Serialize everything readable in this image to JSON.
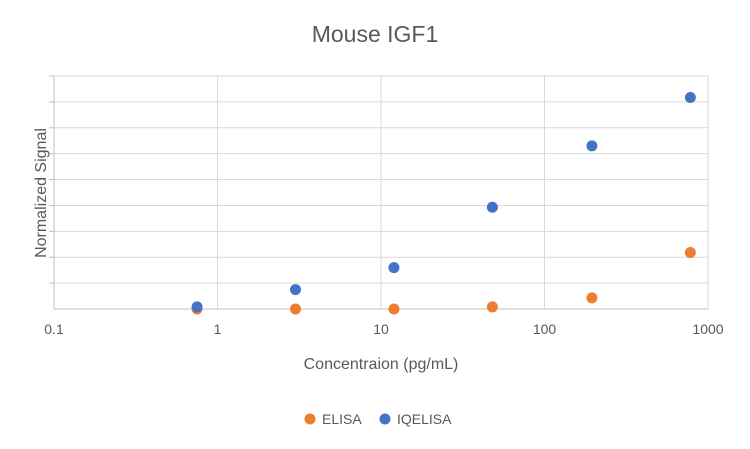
{
  "chart_data": {
    "type": "scatter",
    "title": "Mouse IGF1",
    "xlabel": "Concentraion (pg/mL)",
    "ylabel": "Normalized Signal",
    "x_scale": "log",
    "xlim": [
      0.1,
      1000
    ],
    "ylim": [
      0,
      9
    ],
    "x_ticks": [
      {
        "value": 0.1,
        "label": "0.1"
      },
      {
        "value": 1,
        "label": "1"
      },
      {
        "value": 10,
        "label": "10"
      },
      {
        "value": 100,
        "label": "100"
      },
      {
        "value": 1000,
        "label": "1000"
      }
    ],
    "y_ticks": [
      0,
      1,
      2,
      3,
      4,
      5,
      6,
      7,
      8,
      9
    ],
    "grid": true,
    "legend_position": "bottom",
    "series": [
      {
        "name": "ELISA",
        "color": "#ED7D31",
        "points": [
          {
            "x": 0.75,
            "y": 0.0
          },
          {
            "x": 3.0,
            "y": 0.0
          },
          {
            "x": 12.0,
            "y": 0.0
          },
          {
            "x": 48.0,
            "y": 0.08
          },
          {
            "x": 195.0,
            "y": 0.43
          },
          {
            "x": 780.0,
            "y": 2.18
          }
        ]
      },
      {
        "name": "IQELISA",
        "color": "#4472C4",
        "points": [
          {
            "x": 0.75,
            "y": 0.08
          },
          {
            "x": 3.0,
            "y": 0.75
          },
          {
            "x": 12.0,
            "y": 1.6
          },
          {
            "x": 48.0,
            "y": 3.93
          },
          {
            "x": 195.0,
            "y": 6.3
          },
          {
            "x": 780.0,
            "y": 8.17
          }
        ]
      }
    ]
  }
}
